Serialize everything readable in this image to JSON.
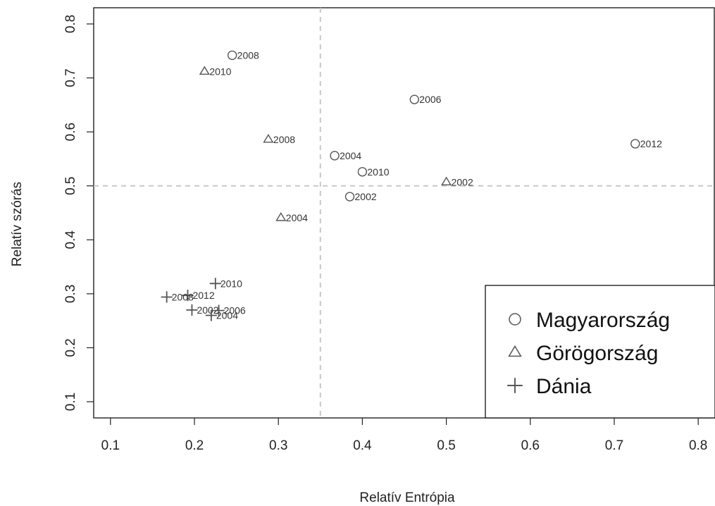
{
  "chart_data": {
    "type": "scatter",
    "title": "",
    "xlabel": "Relatív Entrópia",
    "ylabel": "Relatív szórás",
    "xlim": [
      0.08,
      0.82
    ],
    "ylim": [
      0.07,
      0.83
    ],
    "xticks": [
      "0.1",
      "0.2",
      "0.3",
      "0.4",
      "0.5",
      "0.6",
      "0.7",
      "0.8"
    ],
    "yticks": [
      "0.1",
      "0.2",
      "0.3",
      "0.4",
      "0.5",
      "0.6",
      "0.7",
      "0.8"
    ],
    "reference_lines": {
      "x": 0.35,
      "y": 0.5,
      "style": "dashed"
    },
    "grid": false,
    "legend_position": "bottom-right",
    "series": [
      {
        "name": "Magyarország",
        "marker": "circle",
        "points": [
          {
            "label": "2008",
            "x": 0.245,
            "y": 0.742
          },
          {
            "label": "2006",
            "x": 0.462,
            "y": 0.66
          },
          {
            "label": "2012",
            "x": 0.725,
            "y": 0.578
          },
          {
            "label": "2004",
            "x": 0.367,
            "y": 0.556
          },
          {
            "label": "2010",
            "x": 0.4,
            "y": 0.526
          },
          {
            "label": "2002",
            "x": 0.385,
            "y": 0.48
          }
        ]
      },
      {
        "name": "Görögország",
        "marker": "triangle",
        "points": [
          {
            "label": "2010",
            "x": 0.212,
            "y": 0.712
          },
          {
            "label": "2008",
            "x": 0.288,
            "y": 0.586
          },
          {
            "label": "2002",
            "x": 0.5,
            "y": 0.507
          },
          {
            "label": "2004",
            "x": 0.303,
            "y": 0.441
          }
        ]
      },
      {
        "name": "Dánia",
        "marker": "plus",
        "points": [
          {
            "label": "2010",
            "x": 0.225,
            "y": 0.319
          },
          {
            "label": "2012",
            "x": 0.192,
            "y": 0.297
          },
          {
            "label": "2008",
            "x": 0.167,
            "y": 0.294
          },
          {
            "label": "2002",
            "x": 0.197,
            "y": 0.27
          },
          {
            "label": "2006",
            "x": 0.229,
            "y": 0.269
          },
          {
            "label": "2004",
            "x": 0.22,
            "y": 0.26
          }
        ]
      }
    ]
  },
  "colors": {
    "axis": "#222222",
    "reference_line": "#c8c8c8",
    "marker": "#555555"
  }
}
